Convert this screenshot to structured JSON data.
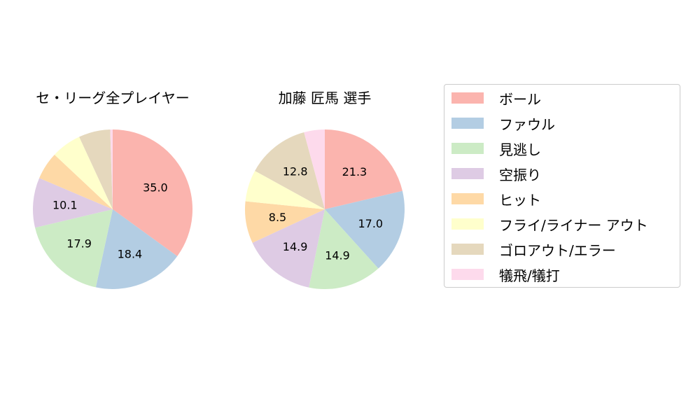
{
  "chart_data": {
    "type": "pie",
    "categories": [
      "ボール",
      "ファウル",
      "見逃し",
      "空振り",
      "ヒット",
      "フライ/ライナー アウト",
      "ゴロアウト/エラー",
      "犠飛/犠打"
    ],
    "colors": [
      "#fbb4ae",
      "#b3cde3",
      "#ccebc5",
      "#decbe4",
      "#fed9a6",
      "#ffffcc",
      "#e5d8bd",
      "#fddaec"
    ],
    "legend_position": "right",
    "charts": [
      {
        "title": "セ・リーグ全プレイヤー",
        "values": [
          35.0,
          18.4,
          17.9,
          10.1,
          5.6,
          6.1,
          6.4,
          0.5
        ],
        "labels": [
          "35.0",
          "18.4",
          "17.9",
          "10.1",
          "",
          "",
          "",
          ""
        ]
      },
      {
        "title": "加藤 匠馬  選手",
        "values": [
          21.3,
          17.0,
          14.9,
          14.9,
          8.5,
          6.4,
          12.8,
          4.2
        ],
        "labels": [
          "21.3",
          "17.0",
          "14.9",
          "14.9",
          "8.5",
          "",
          "12.8",
          ""
        ]
      }
    ]
  }
}
